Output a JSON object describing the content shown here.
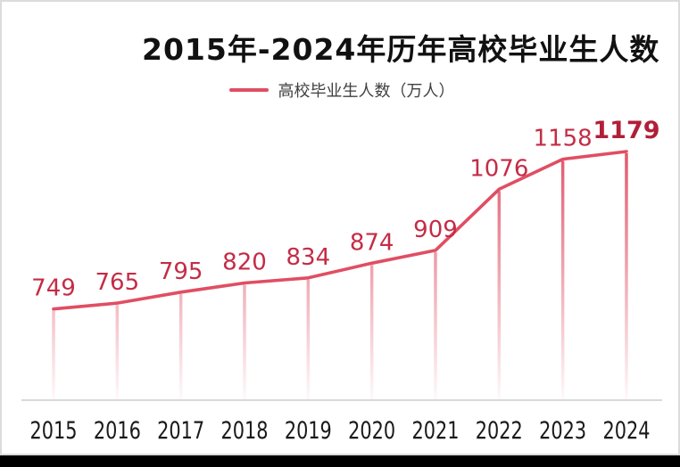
{
  "chart_data": {
    "type": "line",
    "title": "2015年-2024年历年高校毕业生人数",
    "legend": "高校毕业生人数（万人）",
    "legend_position": "top",
    "grid": false,
    "drop_lines": true,
    "categories": [
      "2015",
      "2016",
      "2017",
      "2018",
      "2019",
      "2020",
      "2021",
      "2022",
      "2023",
      "2024"
    ],
    "series": [
      {
        "name": "高校毕业生人数（万人）",
        "values": [
          749,
          765,
          795,
          820,
          834,
          874,
          909,
          1076,
          1158,
          1179
        ]
      }
    ],
    "ylim": [
      500,
      1200
    ],
    "emphasized_last_value": true,
    "colors": {
      "line": "#e04e63",
      "data_label": "#c42c46",
      "last_data_label": "#b21e38",
      "axis_label": "#1a1a1a",
      "baseline": "#d9d9d9",
      "card_border": "#dcdcdc",
      "background": "#ffffff"
    }
  }
}
